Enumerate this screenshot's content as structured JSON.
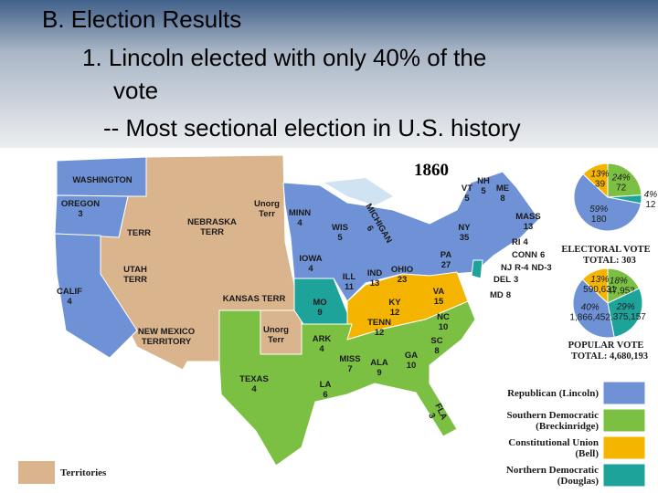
{
  "header": {
    "lines": [
      "B. Election Results",
      "1. Lincoln elected with only 40% of the",
      "vote",
      "-- Most sectional election in U.S.  history"
    ]
  },
  "map": {
    "title": "1860",
    "labels": [
      {
        "lines": [
          "WASHINGTON"
        ]
      },
      {
        "lines": [
          "OREGON",
          3
        ]
      },
      {
        "lines": [
          "CALIF",
          4
        ]
      },
      {
        "lines": [
          "TERR"
        ]
      },
      {
        "lines": [
          "NEBRASKA",
          "TERR"
        ]
      },
      {
        "lines": [
          "UTAH",
          "TERR"
        ]
      },
      {
        "lines": [
          "Unorg",
          "Terr"
        ]
      },
      {
        "lines": [
          "KANSAS TERR"
        ]
      },
      {
        "lines": [
          "NEW MEXICO",
          "TERRITORY"
        ]
      },
      {
        "lines": [
          "Unorg",
          "Terr"
        ]
      },
      {
        "lines": [
          "TEXAS",
          4
        ]
      },
      {
        "lines": [
          "MINN",
          4
        ]
      },
      {
        "lines": [
          "WIS",
          5
        ]
      },
      {
        "lines": [
          "MICHIGAN",
          6
        ]
      },
      {
        "lines": [
          "IOWA",
          4
        ]
      },
      {
        "lines": [
          "ILL",
          11
        ]
      },
      {
        "lines": [
          "IND",
          13
        ]
      },
      {
        "lines": [
          "OHIO",
          23
        ]
      },
      {
        "lines": [
          "MO",
          9
        ]
      },
      {
        "lines": [
          "ARK",
          4
        ]
      },
      {
        "lines": [
          "LA",
          6
        ]
      },
      {
        "lines": [
          "MISS",
          7
        ]
      },
      {
        "lines": [
          "ALA",
          9
        ]
      },
      {
        "lines": [
          "GA",
          10
        ]
      },
      {
        "lines": [
          "KY",
          12
        ]
      },
      {
        "lines": [
          "TENN",
          12
        ]
      },
      {
        "lines": [
          "VA",
          15
        ]
      },
      {
        "lines": [
          "NC",
          10
        ]
      },
      {
        "lines": [
          "SC",
          8
        ]
      },
      {
        "lines": [
          "FLA",
          3
        ]
      },
      {
        "lines": [
          "PA",
          27
        ]
      },
      {
        "lines": [
          "NY",
          35
        ]
      },
      {
        "lines": [
          "VT",
          5
        ]
      },
      {
        "lines": [
          "NH",
          5
        ]
      },
      {
        "lines": [
          "ME",
          8
        ]
      },
      {
        "lines": [
          "MASS",
          13
        ]
      },
      {
        "lines": [
          "RI",
          4
        ]
      },
      {
        "lines": [
          "CONN",
          6
        ]
      },
      {
        "lines": [
          "NJ",
          "R-4",
          "ND-3"
        ]
      },
      {
        "lines": [
          "DEL",
          3
        ]
      },
      {
        "lines": [
          "MD",
          8
        ]
      }
    ]
  },
  "pies": [
    {
      "title": "ELECTORAL VOTE",
      "total": "TOTAL: 303",
      "slices": [
        {
          "percent": 24,
          "percent_label": "24%",
          "votes": 72,
          "color": "#7cc043"
        },
        {
          "percent": 4,
          "percent_label": "4%",
          "votes": 12,
          "color": "#1ea39b"
        },
        {
          "percent": 59,
          "percent_label": "59%",
          "votes": 180,
          "color": "#6f92d6"
        },
        {
          "percent": 13,
          "percent_label": "13%",
          "votes": 39,
          "color": "#f5b400"
        }
      ]
    },
    {
      "title": "POPULAR VOTE",
      "total": "TOTAL: 4,680,193",
      "slices": [
        {
          "percent": 18,
          "percent_label": "18%",
          "votes": "847,953",
          "color": "#7cc043"
        },
        {
          "percent": 29,
          "percent_label": "29%",
          "votes": "1,375,157",
          "color": "#1ea39b"
        },
        {
          "percent": 40,
          "percent_label": "40%",
          "votes": "1,866,452",
          "color": "#6f92d6"
        },
        {
          "percent": 13,
          "percent_label": "13%",
          "votes": "590,631",
          "color": "#f5b400"
        }
      ]
    }
  ],
  "legend": [
    {
      "lines": [
        "Republican (Lincoln)"
      ],
      "color": "#6f92d6"
    },
    {
      "lines": [
        "Southern Democratic",
        "(Breckinridge)"
      ],
      "color": "#7cc043"
    },
    {
      "lines": [
        "Constitutional Union",
        "(Bell)"
      ],
      "color": "#f5b400"
    },
    {
      "lines": [
        "Northern Democratic",
        "(Douglas)"
      ],
      "color": "#1ea39b"
    }
  ],
  "territories_legend": {
    "label": "Territories"
  }
}
